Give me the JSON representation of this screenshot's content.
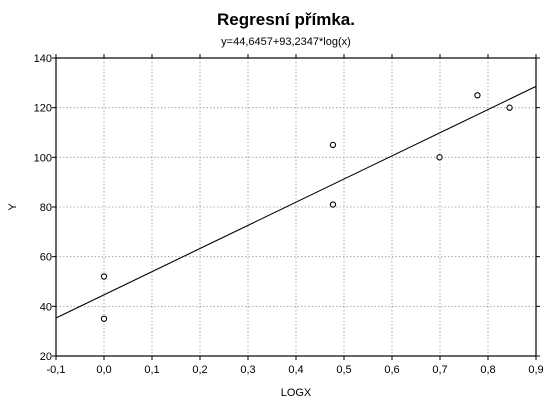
{
  "chart_data": {
    "type": "scatter",
    "title": "Regresní přímka.",
    "subtitle": "y=44,6457+93,2347*log(x)",
    "xlabel": "LOGX",
    "ylabel": "Y",
    "xlim": [
      -0.1,
      0.9
    ],
    "ylim": [
      20,
      140
    ],
    "xticks": [
      -0.1,
      0.0,
      0.1,
      0.2,
      0.3,
      0.4,
      0.5,
      0.6,
      0.7,
      0.8,
      0.9
    ],
    "xtick_labels": [
      "-0,1",
      "0,0",
      "0,1",
      "0,2",
      "0,3",
      "0,4",
      "0,5",
      "0,6",
      "0,7",
      "0,8",
      "0,9"
    ],
    "yticks": [
      20,
      40,
      60,
      80,
      100,
      120,
      140
    ],
    "ytick_labels": [
      "20",
      "40",
      "60",
      "80",
      "100",
      "120",
      "140"
    ],
    "grid": true,
    "points": [
      {
        "x": 0.0,
        "y": 52
      },
      {
        "x": 0.0,
        "y": 35
      },
      {
        "x": 0.477,
        "y": 105
      },
      {
        "x": 0.477,
        "y": 81
      },
      {
        "x": 0.699,
        "y": 100
      },
      {
        "x": 0.778,
        "y": 125
      },
      {
        "x": 0.845,
        "y": 120
      }
    ],
    "regression": {
      "intercept": 44.6457,
      "slope": 93.2347
    },
    "colors": {
      "points": "#000000",
      "line": "#000000",
      "grid": "#9a9a9a"
    }
  }
}
